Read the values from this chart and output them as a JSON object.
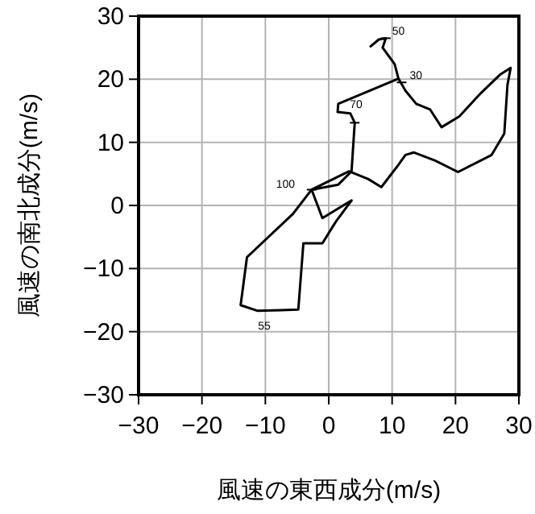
{
  "chart_data": {
    "type": "line",
    "xlabel": "風速の東西成分(m/s)",
    "ylabel": "風速の南北成分(m/s)",
    "xlim": [
      -30,
      30
    ],
    "ylim": [
      -30,
      30
    ],
    "xticks": [
      -30,
      -20,
      -10,
      0,
      10,
      20,
      30
    ],
    "yticks": [
      -30,
      -20,
      -10,
      0,
      10,
      20,
      30
    ],
    "grid": true,
    "marker": "none",
    "line_style": "solid",
    "series": [
      {
        "color": "#000000",
        "x": [
          6.6,
          7.9,
          9.0,
          8.5,
          10.4,
          11,
          12.1,
          13.8,
          16,
          17.8,
          20.6,
          24,
          27,
          28.7,
          28.2,
          27.7,
          25.7,
          20.4,
          16.8,
          13.4,
          12.1,
          10.9,
          8.3,
          6.2,
          3.2,
          -2.7,
          -5.7,
          -12.9,
          -13.9,
          -11.2,
          -7.6,
          -4.8,
          -4,
          -1,
          1.1,
          3.6,
          -1,
          -2.7,
          1.5,
          3.6,
          4.1,
          3.4,
          1.4,
          1.5,
          11
        ],
        "values": [
          25.2,
          26.3,
          26.5,
          25,
          22.4,
          20.1,
          18.2,
          16.1,
          15.2,
          12.4,
          14.1,
          17.8,
          20.7,
          21.8,
          19.1,
          11.4,
          8,
          5.3,
          7.1,
          8.4,
          8,
          6.3,
          2.9,
          4.2,
          5.4,
          2.5,
          -1.4,
          -8.2,
          -15.8,
          -16.7,
          -16.6,
          -16.5,
          -6,
          -6,
          -2.6,
          0.8,
          -2,
          2.5,
          3.3,
          5.4,
          13.1,
          14.6,
          14.8,
          16.1,
          20.1
        ]
      }
    ],
    "annotations": [
      {
        "text": "50",
        "x": 9.0,
        "y": 26.5
      },
      {
        "text": "30",
        "x": 11.5,
        "y": 19.5
      },
      {
        "text": "70",
        "x": 4.1,
        "y": 13.1
      },
      {
        "text": "100",
        "x": -2.7,
        "y": 2.5
      },
      {
        "text": "55",
        "x": -7.6,
        "y": -16.6
      }
    ]
  }
}
